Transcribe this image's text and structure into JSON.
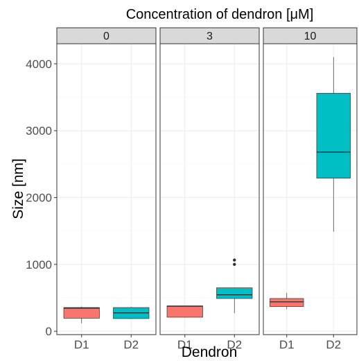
{
  "chart_data": {
    "type": "boxplot",
    "title": "Concentration of dendron [μM]",
    "xlabel": "Dendron",
    "ylabel": "Size [nm]",
    "ylim": [
      -50,
      4300
    ],
    "y_ticks": [
      0,
      1000,
      2000,
      3000,
      4000
    ],
    "y_tick_labels": [
      "0",
      "1000",
      "2000",
      "3000",
      "4000"
    ],
    "categories": [
      "D1",
      "D2"
    ],
    "facets": [
      "0",
      "3",
      "10"
    ],
    "grid": true,
    "colors": {
      "D1": "#F8766D",
      "D2": "#00BFC4"
    },
    "panels": [
      {
        "facet": "0",
        "boxes": [
          {
            "category": "D1",
            "q1": 195,
            "median": 345,
            "q3": 355,
            "whisker_low": 120,
            "whisker_high": 370,
            "outliers": []
          },
          {
            "category": "D2",
            "q1": 190,
            "median": 275,
            "q3": 355,
            "whisker_low": 185,
            "whisker_high": 365,
            "outliers": []
          }
        ]
      },
      {
        "facet": "3",
        "boxes": [
          {
            "category": "D1",
            "q1": 210,
            "median": 375,
            "q3": 380,
            "whisker_low": 205,
            "whisker_high": 385,
            "outliers": []
          },
          {
            "category": "D2",
            "q1": 490,
            "median": 545,
            "q3": 650,
            "whisker_low": 270,
            "whisker_high": 655,
            "outliers": [
              1000,
              1065
            ]
          }
        ]
      },
      {
        "facet": "10",
        "boxes": [
          {
            "category": "D1",
            "q1": 370,
            "median": 440,
            "q3": 490,
            "whisker_low": 330,
            "whisker_high": 575,
            "outliers": []
          },
          {
            "category": "D2",
            "q1": 2290,
            "median": 2680,
            "q3": 3560,
            "whisker_low": 1490,
            "whisker_high": 4100,
            "outliers": []
          }
        ]
      }
    ]
  }
}
